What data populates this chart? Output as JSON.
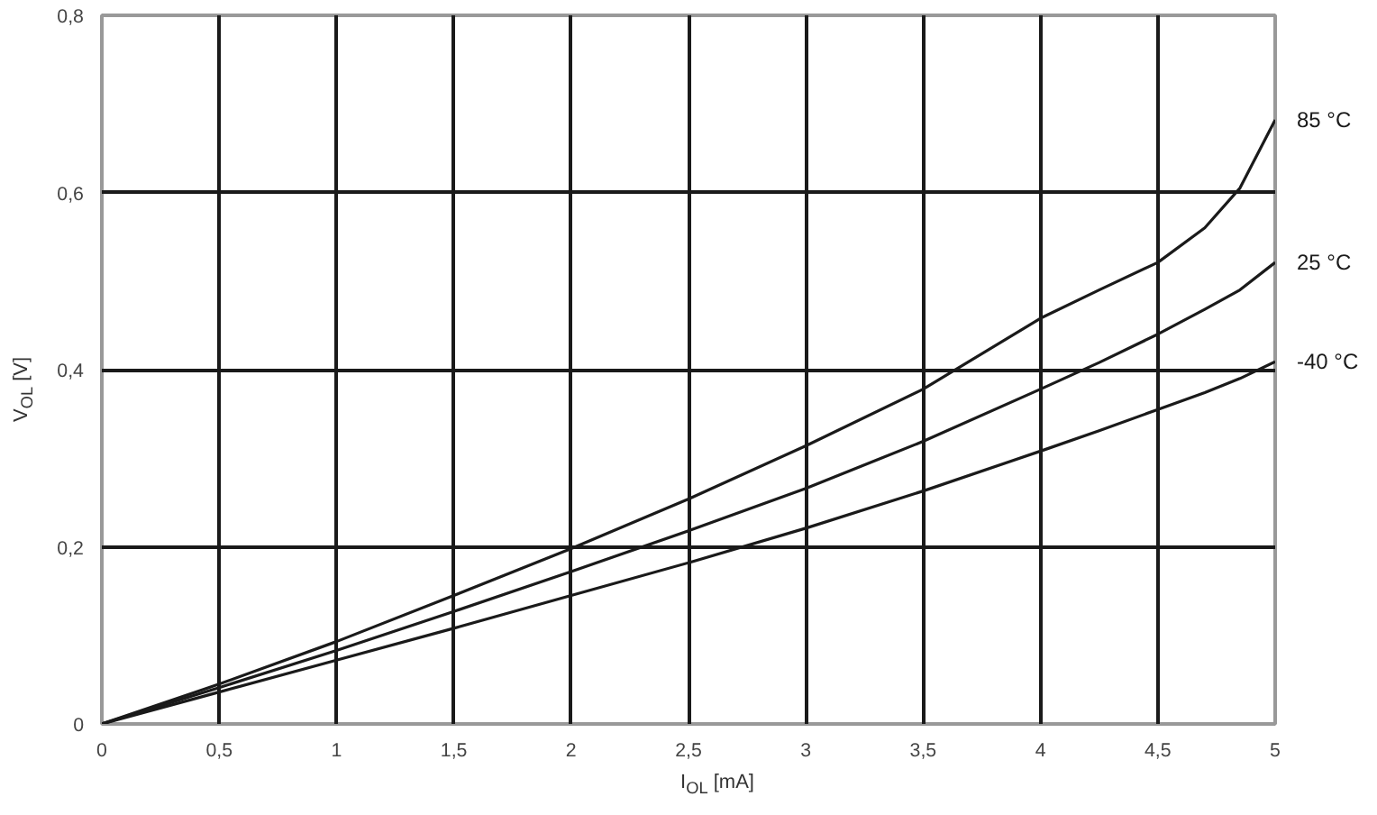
{
  "chart_data": {
    "type": "line",
    "xlabel": "I$_{OL}$ [mA]",
    "ylabel": "V$_{OL}$ [V]",
    "xlim": [
      0,
      5
    ],
    "ylim": [
      0,
      0.8
    ],
    "xticks": [
      0,
      {
        "value": 0.5,
        "label": "0,5"
      },
      1,
      {
        "value": 1.5,
        "label": "1,5"
      },
      2,
      {
        "value": 2.5,
        "label": "2,5"
      },
      3,
      {
        "value": 3.5,
        "label": "3,5"
      },
      4,
      {
        "value": 4.5,
        "label": "4,5"
      },
      5
    ],
    "yticks": [
      0,
      {
        "value": 0.2,
        "label": "0,2"
      },
      {
        "value": 0.4,
        "label": "0,4"
      },
      {
        "value": 0.6,
        "label": "0,6"
      },
      {
        "value": 0.8,
        "label": "0,8"
      }
    ],
    "grid": true,
    "legend": false,
    "marker": "none",
    "line_style": "solid",
    "x": [
      0,
      0.5,
      1,
      1.5,
      2,
      2.5,
      3,
      3.5,
      4,
      4.25,
      4.5,
      4.7,
      4.85,
      5
    ],
    "series": [
      {
        "name": "85 °C",
        "color": "#1a1a1a",
        "values": [
          0,
          0.045,
          0.093,
          0.145,
          0.198,
          0.254,
          0.314,
          0.378,
          0.458,
          0.49,
          0.521,
          0.56,
          0.605,
          0.682
        ]
      },
      {
        "name": "25 °C",
        "color": "#1a1a1a",
        "values": [
          0,
          0.041,
          0.083,
          0.127,
          0.172,
          0.218,
          0.266,
          0.319,
          0.378,
          0.408,
          0.44,
          0.468,
          0.49,
          0.521
        ]
      },
      {
        "name": "-40 °C",
        "color": "#1a1a1a",
        "values": [
          0,
          0.036,
          0.072,
          0.108,
          0.145,
          0.182,
          0.221,
          0.263,
          0.308,
          0.331,
          0.355,
          0.374,
          0.39,
          0.409
        ]
      }
    ]
  }
}
